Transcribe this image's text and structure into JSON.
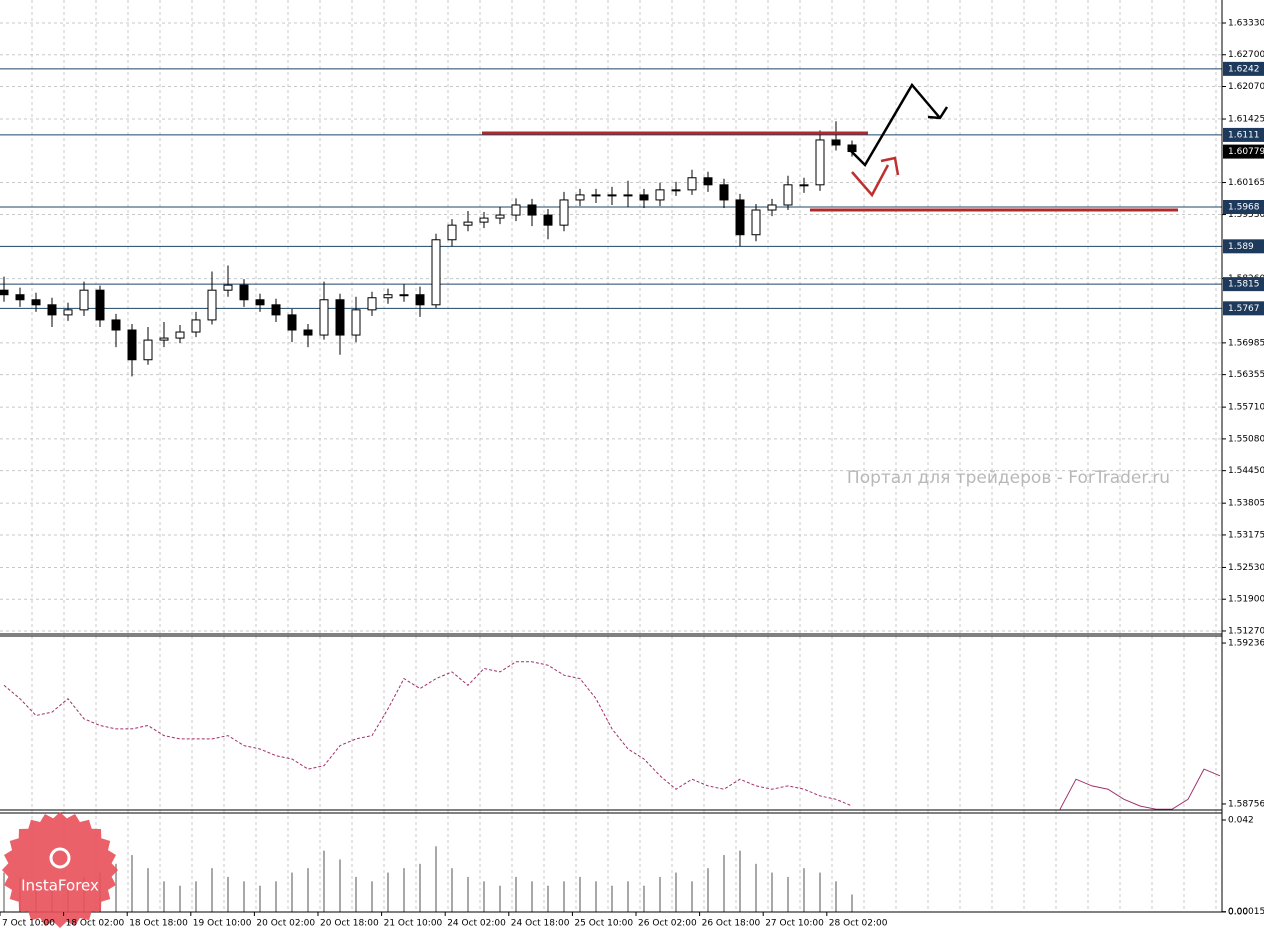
{
  "chart_data": [
    {
      "type": "candlestick",
      "color": "#000000",
      "grid": true,
      "open": [
        1.5803,
        1.5794,
        1.5784,
        1.5774,
        1.5754,
        1.5764,
        1.5803,
        1.5744,
        1.5724,
        1.5665,
        1.5704,
        1.5708,
        1.572,
        1.5744,
        1.5803,
        1.5813,
        1.5784,
        1.5774,
        1.5754,
        1.5724,
        1.5714,
        1.5784,
        1.5714,
        1.5764,
        1.5788,
        1.5794,
        1.5794,
        1.5774,
        1.5903,
        1.5932,
        1.5938,
        1.5946,
        1.5952,
        1.5972,
        1.5952,
        1.5932,
        1.5982,
        1.5992,
        1.5992,
        1.5992,
        1.5992,
        1.5982,
        1.6002,
        1.6002,
        1.6026,
        1.6012,
        1.5982,
        1.5913,
        1.5962,
        1.5972,
        1.6012,
        1.6012,
        1.6101,
        1.6091
      ],
      "high": [
        1.583,
        1.5808,
        1.5798,
        1.5788,
        1.5778,
        1.582,
        1.5812,
        1.5756,
        1.5736,
        1.573,
        1.574,
        1.5734,
        1.576,
        1.584,
        1.5852,
        1.5825,
        1.5796,
        1.5786,
        1.5766,
        1.5736,
        1.582,
        1.5796,
        1.579,
        1.58,
        1.5806,
        1.5815,
        1.581,
        1.5915,
        1.5944,
        1.596,
        1.5958,
        1.5968,
        1.5985,
        1.5984,
        1.5964,
        1.5998,
        1.6004,
        1.6004,
        1.6008,
        1.602,
        1.6004,
        1.6016,
        1.6018,
        1.6042,
        1.6038,
        1.6024,
        1.5994,
        1.5974,
        1.5984,
        1.603,
        1.6026,
        1.612,
        1.6138,
        1.61
      ],
      "low": [
        1.578,
        1.577,
        1.576,
        1.573,
        1.5742,
        1.5752,
        1.573,
        1.569,
        1.5632,
        1.5655,
        1.569,
        1.5698,
        1.571,
        1.5735,
        1.579,
        1.577,
        1.576,
        1.574,
        1.57,
        1.569,
        1.5705,
        1.5675,
        1.57,
        1.5752,
        1.5776,
        1.578,
        1.575,
        1.5768,
        1.589,
        1.592,
        1.5926,
        1.5934,
        1.594,
        1.593,
        1.5904,
        1.592,
        1.597,
        1.5976,
        1.5972,
        1.5968,
        1.5966,
        1.597,
        1.599,
        1.5992,
        1.5998,
        1.5966,
        1.589,
        1.59,
        1.595,
        1.5962,
        1.5996,
        1.6,
        1.608,
        1.6068
      ],
      "close": [
        1.5794,
        1.5784,
        1.5774,
        1.5754,
        1.5764,
        1.5803,
        1.5744,
        1.5724,
        1.5665,
        1.5704,
        1.5708,
        1.572,
        1.5744,
        1.5803,
        1.5813,
        1.5784,
        1.5774,
        1.5754,
        1.5724,
        1.5714,
        1.5784,
        1.5714,
        1.5764,
        1.5788,
        1.5794,
        1.5794,
        1.5774,
        1.5903,
        1.5932,
        1.5938,
        1.5946,
        1.5952,
        1.5972,
        1.5952,
        1.5932,
        1.5982,
        1.5992,
        1.5992,
        1.5992,
        1.5992,
        1.5982,
        1.6002,
        1.6002,
        1.6026,
        1.6012,
        1.5982,
        1.5913,
        1.5962,
        1.5972,
        1.6012,
        1.6012,
        1.6101,
        1.6091,
        1.6078
      ],
      "ylim": [
        1.5121,
        1.63786
      ],
      "yticks": [
        {
          "value": 1.6333,
          "label": "1.63330"
        },
        {
          "value": 1.627,
          "label": "1.62700"
        },
        {
          "value": 1.6207,
          "label": "1.62070"
        },
        1.61425,
        {
          "value": 1.60165,
          "label": "1.60165"
        },
        {
          "value": 1.5953,
          "label": "1.59530"
        },
        {
          "value": 1.5826,
          "label": "1.58260"
        },
        1.56985,
        1.56355,
        {
          "value": 1.5571,
          "label": "1.55710"
        },
        {
          "value": 1.5508,
          "label": "1.55080"
        },
        {
          "value": 1.5445,
          "label": "1.54450"
        },
        1.53805,
        1.53175,
        {
          "value": 1.5253,
          "label": "1.52530"
        },
        {
          "value": 1.519,
          "label": "1.51900"
        },
        {
          "value": 1.5127,
          "label": "1.51270"
        }
      ],
      "levels": [
        1.6242,
        1.6111,
        1.5968,
        1.589,
        1.5815,
        1.5767
      ],
      "last_price": 1.60779,
      "x_labels": [
        "7 Oct 10:00",
        "18 Oct 02:00",
        "18 Oct 18:00",
        "19 Oct 10:00",
        "20 Oct 02:00",
        "20 Oct 18:00",
        "21 Oct 10:00",
        "24 Oct 02:00",
        "24 Oct 18:00",
        "25 Oct 10:00",
        "26 Oct 02:00",
        "26 Oct 18:00",
        "27 Oct 10:00",
        "28 Oct 02:00"
      ]
    },
    {
      "type": "line",
      "series": [
        {
          "color": "#a0306a",
          "dashed": true,
          "values": [
            1.5911,
            1.5907,
            1.5902,
            1.5903,
            1.5907,
            1.5901,
            1.5899,
            1.5898,
            1.5898,
            1.5899,
            1.5896,
            1.5895,
            1.5895,
            1.5895,
            1.5896,
            1.5893,
            1.5892,
            1.589,
            1.5889,
            1.5886,
            1.5887,
            1.5893,
            1.5895,
            1.5896,
            1.5904,
            1.5913,
            1.591,
            1.5913,
            1.5915,
            1.5911,
            1.5916,
            1.5915,
            1.5918,
            1.5918,
            1.5917,
            1.5914,
            1.5913,
            1.5907,
            1.5898,
            1.5892,
            1.5889,
            1.5884,
            1.588,
            1.5883,
            1.5881,
            1.588,
            1.5883,
            1.5881,
            1.588,
            1.5881,
            1.588,
            1.5878,
            1.5877,
            1.5875,
            null,
            null,
            null,
            null,
            null,
            null,
            null,
            null,
            null,
            null,
            null,
            null,
            null,
            null,
            null,
            null,
            null,
            null,
            null,
            null,
            null,
            null,
            null
          ]
        },
        {
          "color": "#a0306a",
          "dashed": false,
          "values": [
            null,
            null,
            null,
            null,
            null,
            null,
            null,
            null,
            null,
            null,
            null,
            null,
            null,
            null,
            null,
            null,
            null,
            null,
            null,
            null,
            null,
            null,
            null,
            null,
            null,
            null,
            null,
            null,
            null,
            null,
            null,
            null,
            null,
            null,
            null,
            null,
            null,
            null,
            null,
            null,
            null,
            null,
            null,
            null,
            null,
            null,
            null,
            null,
            null,
            null,
            null,
            null,
            null,
            null,
            null,
            null,
            null,
            null,
            null,
            null,
            null,
            null,
            null,
            null,
            null,
            null,
            1.5874,
            1.5883,
            1.5881,
            1.588,
            1.5877,
            1.5875,
            1.5874,
            1.5874,
            1.5877,
            1.5886,
            1.5884
          ]
        }
      ],
      "ylim": [
        1.58738,
        1.59257
      ],
      "yticks": [
        1.59236,
        1.58756
      ]
    },
    {
      "type": "bar",
      "color": "#a8a8a8",
      "values": [
        0.018,
        0.016,
        0.014,
        0.012,
        0.014,
        0.016,
        0.018,
        0.022,
        0.026,
        0.02,
        0.014,
        0.012,
        0.014,
        0.02,
        0.016,
        0.014,
        0.012,
        0.014,
        0.018,
        0.02,
        0.028,
        0.024,
        0.016,
        0.014,
        0.018,
        0.02,
        0.022,
        0.03,
        0.02,
        0.016,
        0.014,
        0.012,
        0.016,
        0.014,
        0.012,
        0.014,
        0.016,
        0.014,
        0.012,
        0.014,
        0.012,
        0.016,
        0.018,
        0.014,
        0.02,
        0.026,
        0.028,
        0.022,
        0.018,
        0.016,
        0.02,
        0.018,
        0.014,
        0.008
      ],
      "ylim": [
        0,
        0.0452
      ],
      "yticks": [
        0.042,
        0.000156,
        {
          "value": 0,
          "label": "0.00"
        }
      ]
    }
  ],
  "watermark": "Портал для трейдеров - ForTrader.ru",
  "logo": "InstaForex"
}
